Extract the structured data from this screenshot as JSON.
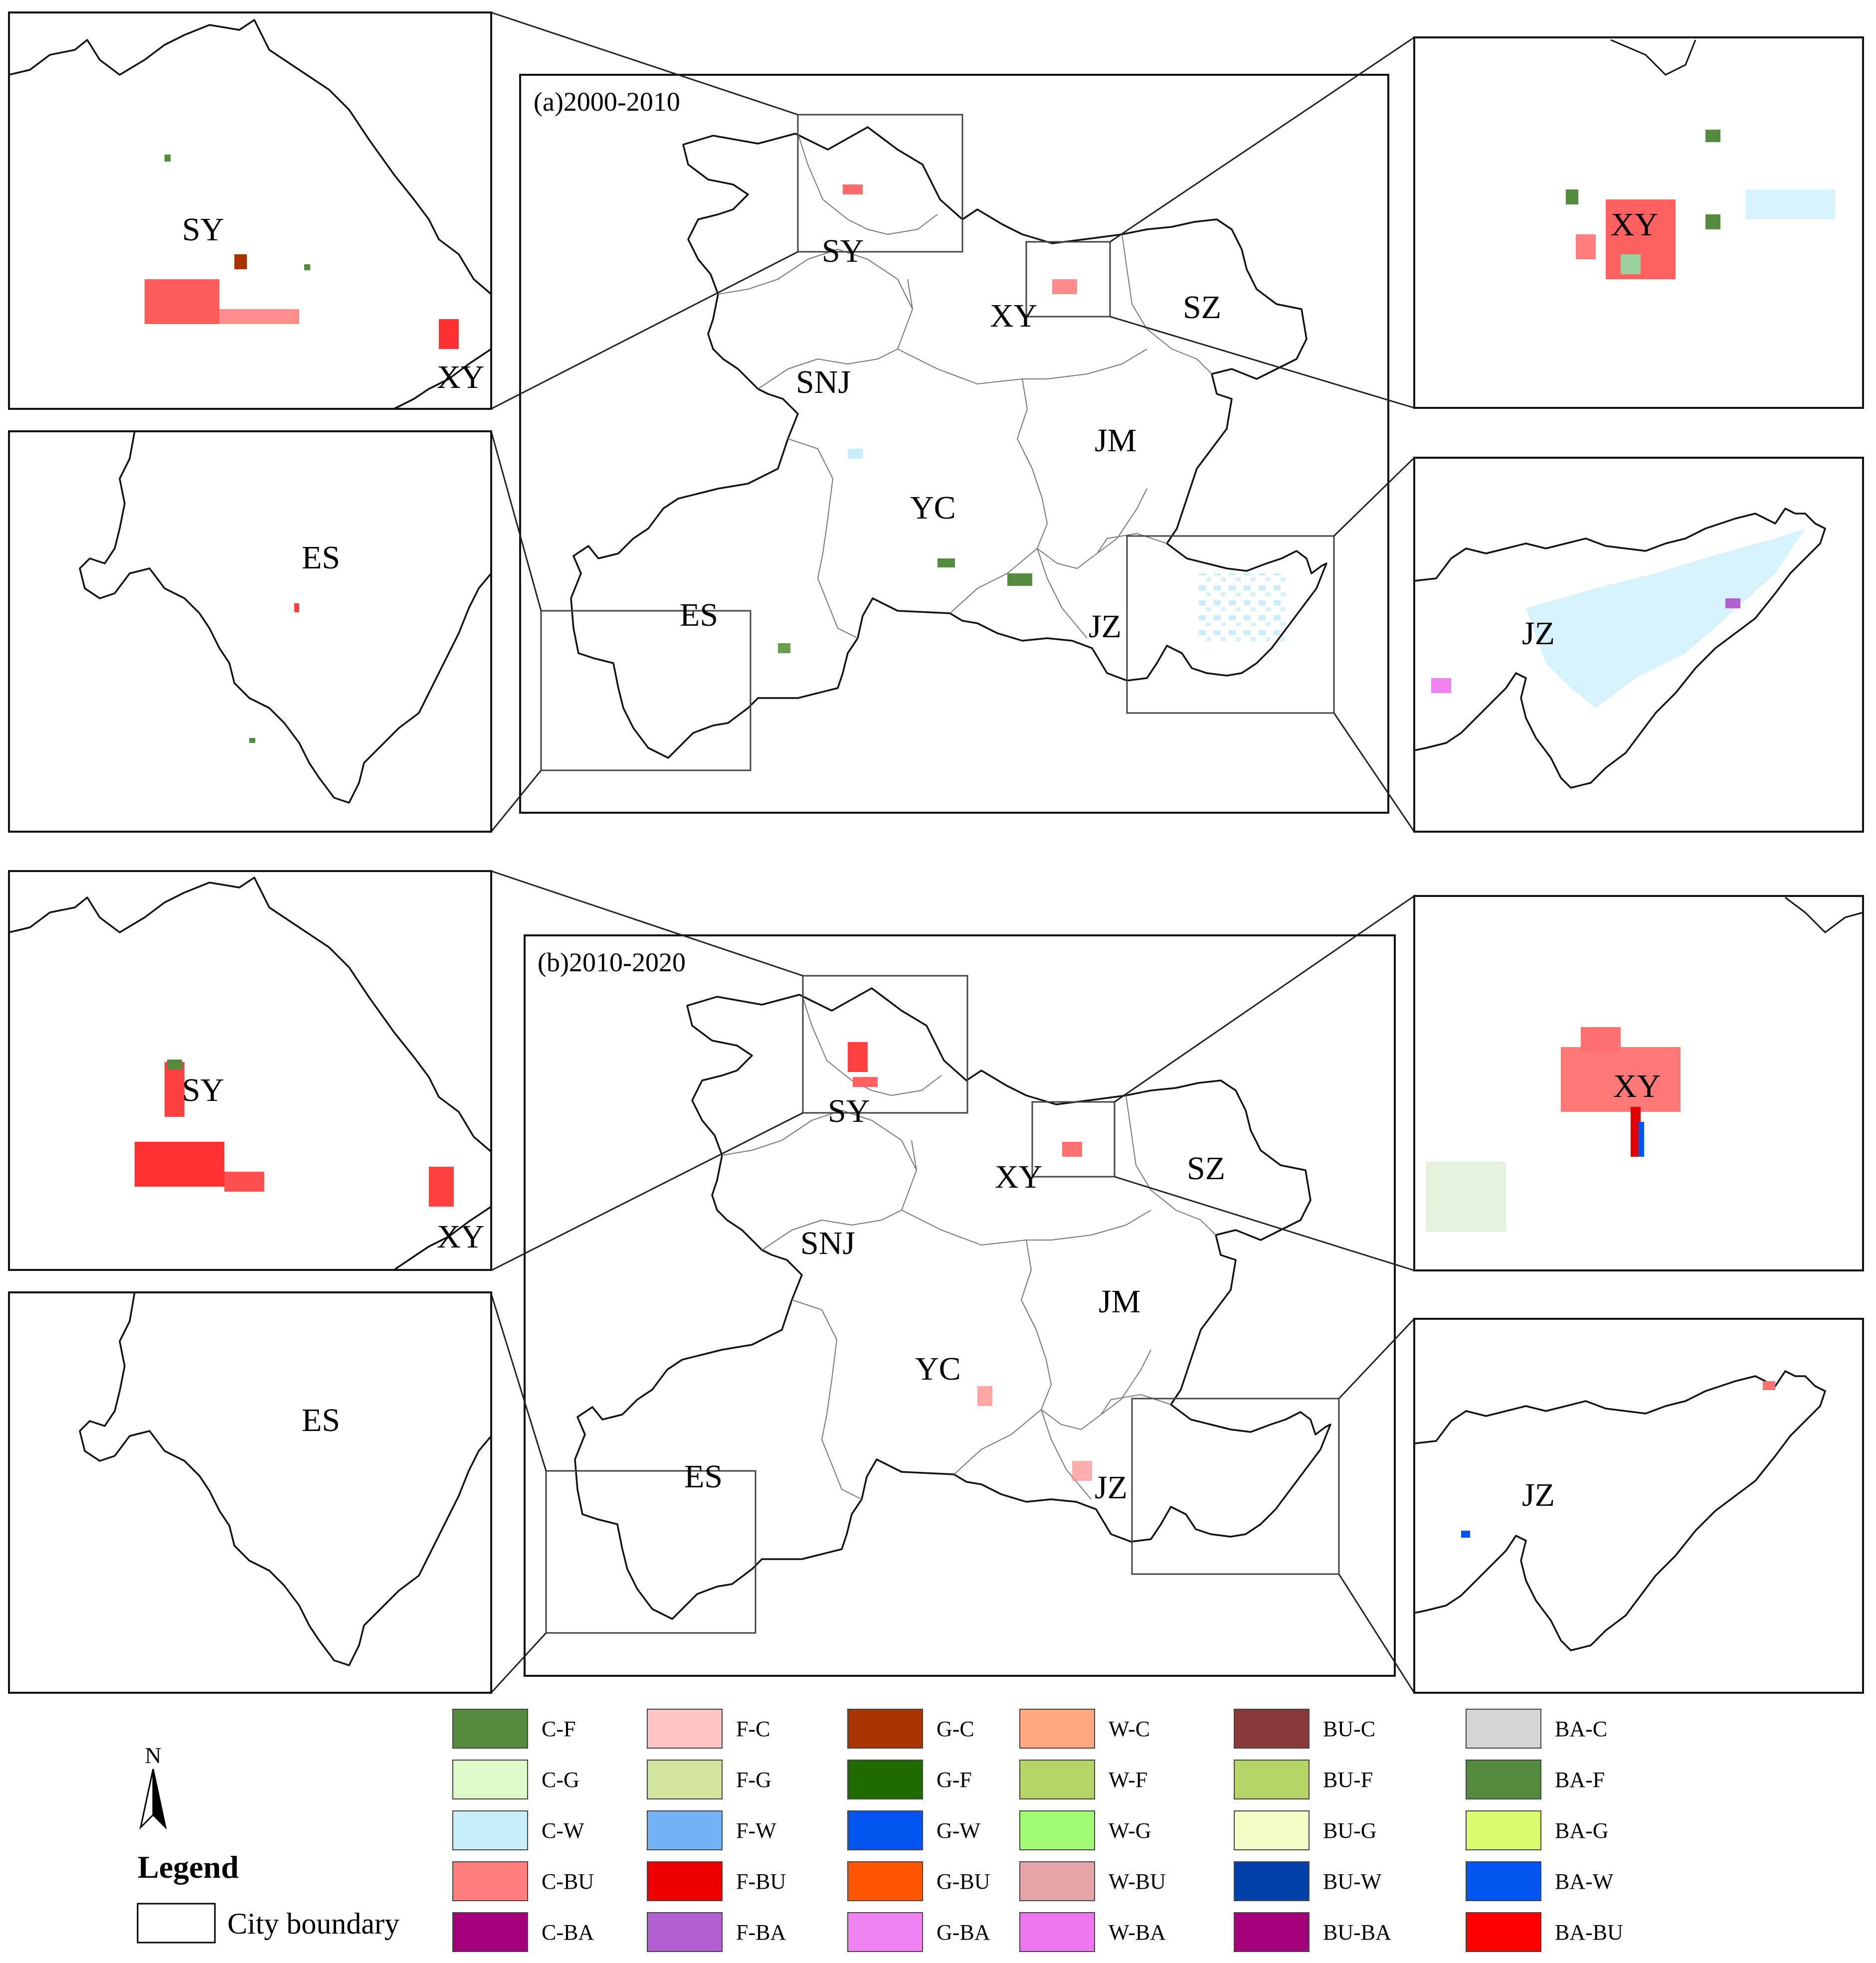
{
  "panels": [
    {
      "id": "a",
      "title": "(a)2000-2010",
      "cities": [
        "SY",
        "XY",
        "SZ",
        "SNJ",
        "JM",
        "YC",
        "ES",
        "JZ"
      ],
      "insets": {
        "sy": [
          "SY",
          "XY"
        ],
        "xy": [
          "XY"
        ],
        "es": [
          "ES"
        ],
        "jz": [
          "JZ"
        ]
      }
    },
    {
      "id": "b",
      "title": "(b)2010-2020",
      "cities": [
        "SY",
        "XY",
        "SZ",
        "SNJ",
        "JM",
        "YC",
        "ES",
        "JZ"
      ],
      "insets": {
        "sy": [
          "SY",
          "XY"
        ],
        "xy": [
          "XY"
        ],
        "es": [
          "ES"
        ],
        "jz": [
          "JZ"
        ]
      }
    }
  ],
  "legend": {
    "title": "Legend",
    "north": "N",
    "boundary_label": "City boundary",
    "columns": [
      [
        {
          "code": "C-F",
          "color": "#548b3f"
        },
        {
          "code": "C-G",
          "color": "#dff8c9"
        },
        {
          "code": "C-W",
          "color": "#c8eefa"
        },
        {
          "code": "C-BU",
          "color": "#ff7d7d"
        },
        {
          "code": "C-BA",
          "color": "#a3007c"
        }
      ],
      [
        {
          "code": "F-C",
          "color": "#ffc5c5"
        },
        {
          "code": "F-G",
          "color": "#d3e3a0"
        },
        {
          "code": "F-W",
          "color": "#73b3f5"
        },
        {
          "code": "F-BU",
          "color": "#ee0000"
        },
        {
          "code": "F-BA",
          "color": "#b15fd1"
        }
      ],
      [
        {
          "code": "G-C",
          "color": "#a83300"
        },
        {
          "code": "G-F",
          "color": "#1f6b00"
        },
        {
          "code": "G-W",
          "color": "#0455f0"
        },
        {
          "code": "G-BU",
          "color": "#ff5500"
        },
        {
          "code": "G-BA",
          "color": "#f081f0"
        }
      ],
      [
        {
          "code": "W-C",
          "color": "#ffa77f"
        },
        {
          "code": "W-F",
          "color": "#b4d565"
        },
        {
          "code": "W-G",
          "color": "#a2fb74"
        },
        {
          "code": "W-BU",
          "color": "#e3a5a5"
        },
        {
          "code": "W-BA",
          "color": "#ee76ee"
        }
      ],
      [
        {
          "code": "BU-C",
          "color": "#893939"
        },
        {
          "code": "BU-F",
          "color": "#b4d565"
        },
        {
          "code": "BU-G",
          "color": "#f3fcc5"
        },
        {
          "code": "BU-W",
          "color": "#0040a8"
        },
        {
          "code": "BU-BA",
          "color": "#a3007c"
        }
      ],
      [
        {
          "code": "BA-C",
          "color": "#d5d5d5"
        },
        {
          "code": "BA-F",
          "color": "#548b3f"
        },
        {
          "code": "BA-G",
          "color": "#d8fb6f"
        },
        {
          "code": "BA-W",
          "color": "#0455f0"
        },
        {
          "code": "BA-BU",
          "color": "#ff0000"
        }
      ]
    ]
  }
}
